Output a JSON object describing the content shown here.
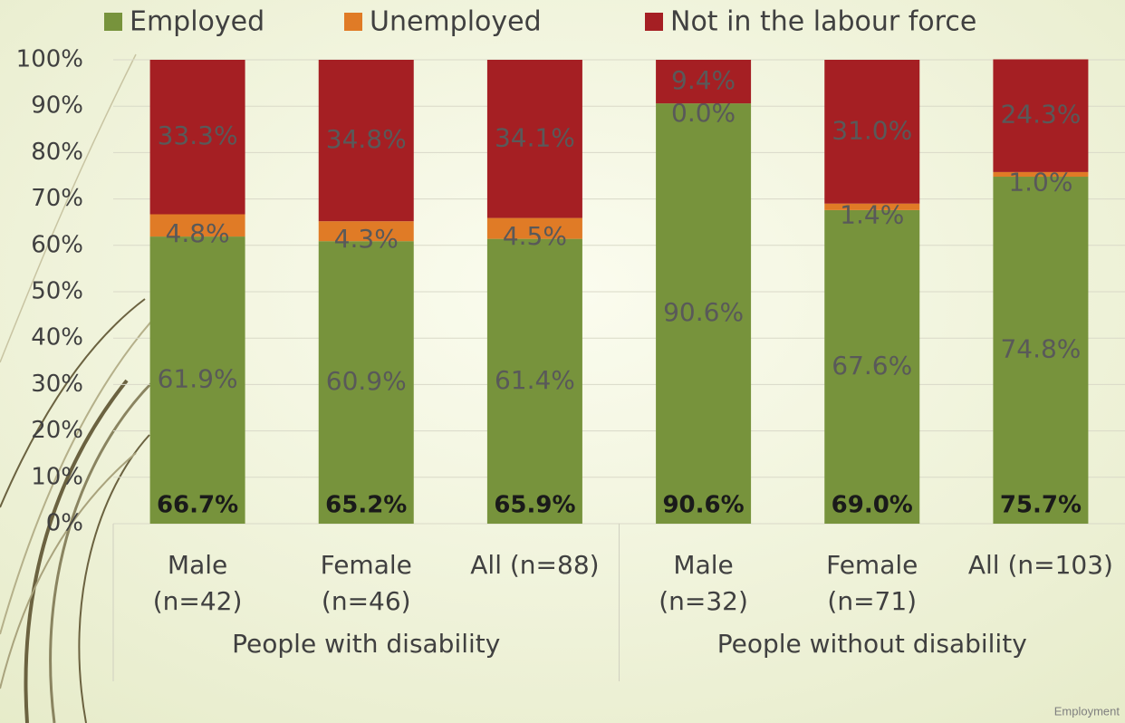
{
  "chart_data": {
    "type": "stacked-bar",
    "categories": [
      [
        "Male",
        "(n=42)"
      ],
      [
        "Female",
        "(n=46)"
      ],
      [
        "All (n=88)"
      ],
      [
        "Male",
        "(n=32)"
      ],
      [
        "Female",
        "(n=71)"
      ],
      [
        "All (n=103)"
      ]
    ],
    "groups": [
      "People with disability",
      "People without disability"
    ],
    "series": [
      {
        "name": "Employed",
        "color": "#77933c",
        "values": [
          61.9,
          60.9,
          61.4,
          90.6,
          67.6,
          74.8
        ],
        "value_labels": [
          "61.9%",
          "60.9%",
          "61.4%",
          "90.6%",
          "67.6%",
          "74.8%"
        ]
      },
      {
        "name": "Unemployed",
        "color": "#e07b26",
        "values": [
          4.8,
          4.3,
          4.5,
          0.0,
          1.4,
          1.0
        ],
        "value_labels": [
          "4.8%",
          "4.3%",
          "4.5%",
          "0.0%",
          "1.4%",
          "1.0%"
        ]
      },
      {
        "name": "Not in the labour force",
        "color": "#a51f23",
        "values": [
          33.3,
          34.8,
          34.1,
          9.4,
          31.0,
          24.3
        ],
        "value_labels": [
          "33.3%",
          "34.8%",
          "34.1%",
          "9.4%",
          "31.0%",
          "24.3%"
        ]
      }
    ],
    "totals": {
      "values": [
        66.7,
        65.2,
        65.9,
        90.6,
        69.0,
        75.7
      ],
      "value_labels": [
        "66.7%",
        "65.2%",
        "65.9%",
        "90.6%",
        "69.0%",
        "75.7%"
      ]
    },
    "ylim": [
      0,
      100
    ],
    "yticks": [
      {
        "value": 0,
        "label": "0%"
      },
      {
        "value": 10,
        "label": "10%"
      },
      {
        "value": 20,
        "label": "20%"
      },
      {
        "value": 30,
        "label": "30%"
      },
      {
        "value": 40,
        "label": "40%"
      },
      {
        "value": 50,
        "label": "50%"
      },
      {
        "value": 60,
        "label": "60%"
      },
      {
        "value": 70,
        "label": "70%"
      },
      {
        "value": 80,
        "label": "80%"
      },
      {
        "value": 90,
        "label": "90%"
      },
      {
        "value": 100,
        "label": "100%"
      }
    ],
    "grid": true,
    "legend": "top",
    "footer": "Employment"
  }
}
